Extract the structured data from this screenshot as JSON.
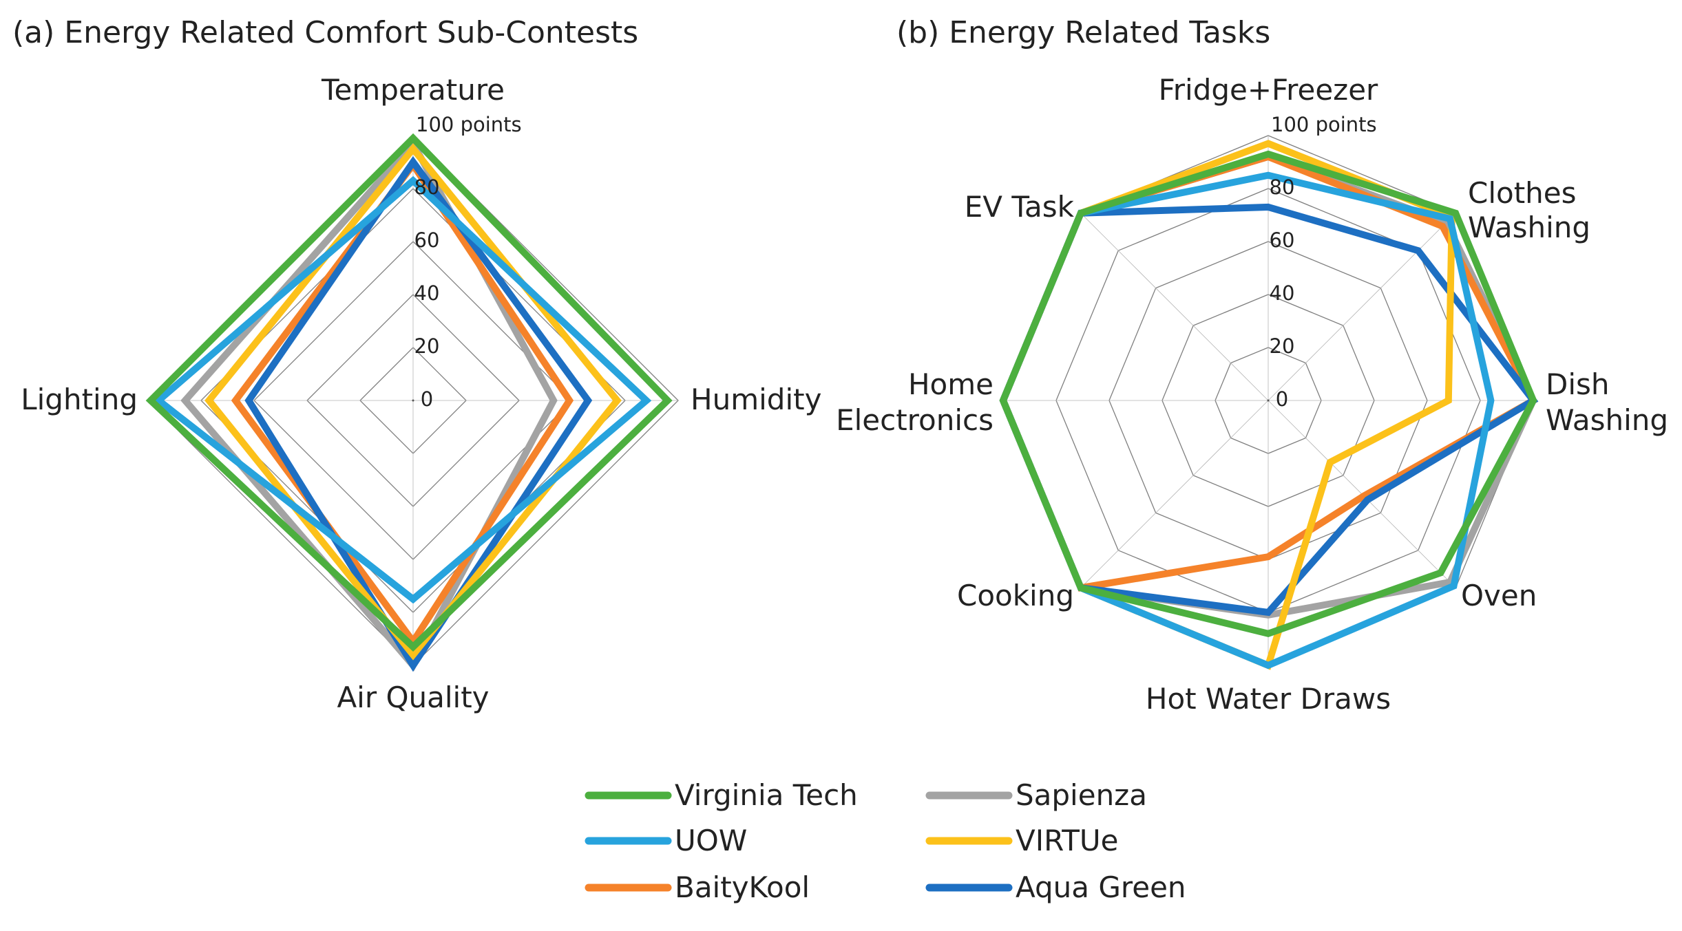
{
  "colors": {
    "Virginia Tech": "#4caf3f",
    "UOW": "#27a3dd",
    "BaityKool": "#f5822a",
    "Sapienza": "#a3a3a3",
    "VIRTUe": "#fcc11a",
    "Aqua Green": "#1d6fc2"
  },
  "chart_data": [
    {
      "type": "radar",
      "title": "(a) Energy Related Comfort Sub-Contests",
      "axes": [
        "Temperature",
        "Humidity",
        "Air Quality",
        "Lighting"
      ],
      "r_range": [
        0,
        100
      ],
      "ticks": [
        "0",
        "20",
        "40",
        "60",
        "80",
        "100 points"
      ],
      "grid": true,
      "series": [
        {
          "name": "Sapienza",
          "values": [
            97,
            53,
            100,
            86
          ]
        },
        {
          "name": "BaityKool",
          "values": [
            89,
            59,
            91,
            67
          ]
        },
        {
          "name": "Aqua Green",
          "values": [
            90,
            66,
            100,
            62
          ]
        },
        {
          "name": "VIRTUe",
          "values": [
            95,
            77,
            96,
            77
          ]
        },
        {
          "name": "UOW",
          "values": [
            83,
            88,
            75,
            96
          ]
        },
        {
          "name": "Virginia Tech",
          "values": [
            99,
            96,
            93,
            99
          ]
        }
      ]
    },
    {
      "type": "radar",
      "title": "(b) Energy Related Tasks",
      "axes": [
        "Fridge+Freezer",
        "Clothes Washing",
        "Dish Washing",
        "Oven",
        "Hot Water Draws",
        "Cooking",
        "Home Electronics",
        "EV Task"
      ],
      "axis_lines": [
        [
          "Fridge+Freezer"
        ],
        [
          "Clothes",
          "Washing"
        ],
        [
          "Dish",
          "Washing"
        ],
        [
          "Oven"
        ],
        [
          "Hot Water Draws"
        ],
        [
          "Cooking"
        ],
        [
          "Home",
          "Electronics"
        ],
        [
          "EV Task"
        ]
      ],
      "r_range": [
        0,
        100
      ],
      "ticks": [
        "0",
        "20",
        "40",
        "60",
        "80",
        "100 points"
      ],
      "grid": true,
      "series": [
        {
          "name": "Sapienza",
          "values": [
            92,
            95,
            100,
            97,
            81,
            100,
            100,
            100
          ]
        },
        {
          "name": "BaityKool",
          "values": [
            92,
            93,
            100,
            51,
            59,
            100,
            100,
            100
          ]
        },
        {
          "name": "Aqua Green",
          "values": [
            73,
            80,
            100,
            53,
            80,
            100,
            100,
            100
          ]
        },
        {
          "name": "VIRTUe",
          "values": [
            97,
            98,
            68,
            33,
            100,
            100,
            100,
            100
          ]
        },
        {
          "name": "UOW",
          "values": [
            85,
            97,
            84,
            99,
            100,
            100,
            100,
            100
          ]
        },
        {
          "name": "Virginia Tech",
          "values": [
            93,
            100,
            100,
            92,
            88,
            100,
            100,
            100
          ]
        }
      ]
    }
  ],
  "legend": [
    [
      "Virginia Tech",
      "Sapienza"
    ],
    [
      "UOW",
      "VIRTUe"
    ],
    [
      "BaityKool",
      "Aqua Green"
    ]
  ]
}
